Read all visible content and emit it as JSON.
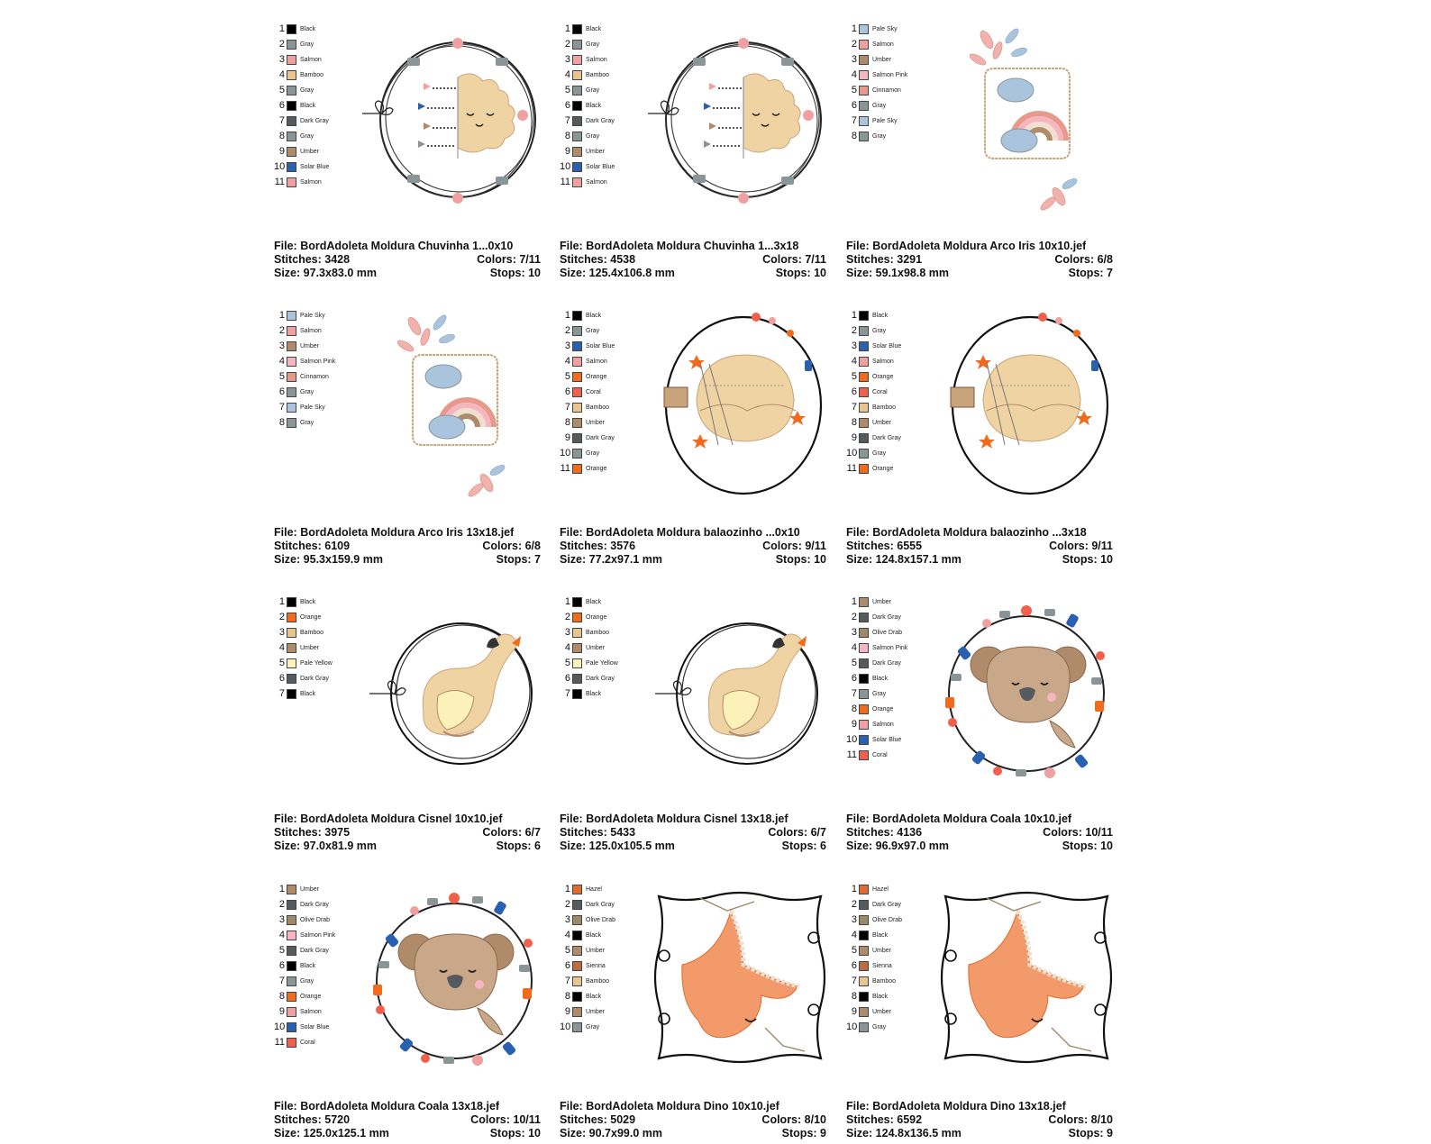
{
  "swatch_colors": {
    "Black": "#000000",
    "Gray": "#8a9598",
    "Salmon": "#f0a0a0",
    "Bamboo": "#e8c48e",
    "Dark Gray": "#555a5f",
    "Umber": "#b08b6a",
    "Solar Blue": "#2a60b0",
    "Pale Sky": "#a9c4dc",
    "Salmon Pink": "#f6b6c0",
    "Cinnamon": "#e79a8c",
    "Orange": "#f26a1b",
    "Coral": "#f0604c",
    "Pale Yellow": "#fcf1b8",
    "Olive Drab": "#9c8a66",
    "Hazel": "#e06a30",
    "Sienna": "#c06a40"
  },
  "designs": [
    {
      "file_label": "File:",
      "file": "BordAdoleta Moldura  Chuvinha 1...0x10",
      "stitches_label": "Stitches:",
      "stitches": "3428",
      "colors_label": "Colors:",
      "colors": "7/11",
      "size_label": "Size:",
      "size": "97.3x83.0 mm",
      "stops_label": "Stops:",
      "stops": "10",
      "art": "chuvinha",
      "legend": [
        {
          "num": "1",
          "name": "Black"
        },
        {
          "num": "2",
          "name": "Gray"
        },
        {
          "num": "3",
          "name": "Salmon"
        },
        {
          "num": "4",
          "name": "Bamboo"
        },
        {
          "num": "5",
          "name": "Gray"
        },
        {
          "num": "6",
          "name": "Black"
        },
        {
          "num": "7",
          "name": "Dark Gray"
        },
        {
          "num": "8",
          "name": "Gray"
        },
        {
          "num": "9",
          "name": "Umber"
        },
        {
          "num": "10",
          "name": "Solar Blue"
        },
        {
          "num": "11",
          "name": "Salmon"
        }
      ]
    },
    {
      "file_label": "File:",
      "file": "BordAdoleta Moldura  Chuvinha 1...3x18",
      "stitches_label": "Stitches:",
      "stitches": "4538",
      "colors_label": "Colors:",
      "colors": "7/11",
      "size_label": "Size:",
      "size": "125.4x106.8 mm",
      "stops_label": "Stops:",
      "stops": "10",
      "art": "chuvinha",
      "legend": [
        {
          "num": "1",
          "name": "Black"
        },
        {
          "num": "2",
          "name": "Gray"
        },
        {
          "num": "3",
          "name": "Salmon"
        },
        {
          "num": "4",
          "name": "Bamboo"
        },
        {
          "num": "5",
          "name": "Gray"
        },
        {
          "num": "6",
          "name": "Black"
        },
        {
          "num": "7",
          "name": "Dark Gray"
        },
        {
          "num": "8",
          "name": "Gray"
        },
        {
          "num": "9",
          "name": "Umber"
        },
        {
          "num": "10",
          "name": "Solar Blue"
        },
        {
          "num": "11",
          "name": "Salmon"
        }
      ]
    },
    {
      "file_label": "File:",
      "file": "BordAdoleta Moldura Arco Iris 10x10.jef",
      "stitches_label": "Stitches:",
      "stitches": "3291",
      "colors_label": "Colors:",
      "colors": "6/8",
      "size_label": "Size:",
      "size": "59.1x98.8 mm",
      "stops_label": "Stops:",
      "stops": "7",
      "art": "arco",
      "legend": [
        {
          "num": "1",
          "name": "Pale Sky"
        },
        {
          "num": "2",
          "name": "Salmon"
        },
        {
          "num": "3",
          "name": "Umber"
        },
        {
          "num": "4",
          "name": "Salmon Pink"
        },
        {
          "num": "5",
          "name": "Cinnamon"
        },
        {
          "num": "6",
          "name": "Gray"
        },
        {
          "num": "7",
          "name": "Pale Sky"
        },
        {
          "num": "8",
          "name": "Gray"
        }
      ]
    },
    {
      "file_label": "File:",
      "file": "BordAdoleta Moldura Arco Iris 13x18.jef",
      "stitches_label": "Stitches:",
      "stitches": "6109",
      "colors_label": "Colors:",
      "colors": "6/8",
      "size_label": "Size:",
      "size": "95.3x159.9 mm",
      "stops_label": "Stops:",
      "stops": "7",
      "art": "arco",
      "legend": [
        {
          "num": "1",
          "name": "Pale Sky"
        },
        {
          "num": "2",
          "name": "Salmon"
        },
        {
          "num": "3",
          "name": "Umber"
        },
        {
          "num": "4",
          "name": "Salmon Pink"
        },
        {
          "num": "5",
          "name": "Cinnamon"
        },
        {
          "num": "6",
          "name": "Gray"
        },
        {
          "num": "7",
          "name": "Pale Sky"
        },
        {
          "num": "8",
          "name": "Gray"
        }
      ]
    },
    {
      "file_label": "File:",
      "file": "BordAdoleta Moldura balaozinho ...0x10",
      "stitches_label": "Stitches:",
      "stitches": "3576",
      "colors_label": "Colors:",
      "colors": "9/11",
      "size_label": "Size:",
      "size": "77.2x97.1 mm",
      "stops_label": "Stops:",
      "stops": "10",
      "art": "balao",
      "legend": [
        {
          "num": "1",
          "name": "Black"
        },
        {
          "num": "2",
          "name": "Gray"
        },
        {
          "num": "3",
          "name": "Solar Blue"
        },
        {
          "num": "4",
          "name": "Salmon"
        },
        {
          "num": "5",
          "name": "Orange"
        },
        {
          "num": "6",
          "name": "Coral"
        },
        {
          "num": "7",
          "name": "Bamboo"
        },
        {
          "num": "8",
          "name": "Umber"
        },
        {
          "num": "9",
          "name": "Dark Gray"
        },
        {
          "num": "10",
          "name": "Gray"
        },
        {
          "num": "11",
          "name": "Orange"
        }
      ]
    },
    {
      "file_label": "File:",
      "file": "BordAdoleta Moldura balaozinho ...3x18",
      "stitches_label": "Stitches:",
      "stitches": "6555",
      "colors_label": "Colors:",
      "colors": "9/11",
      "size_label": "Size:",
      "size": "124.8x157.1 mm",
      "stops_label": "Stops:",
      "stops": "10",
      "art": "balao",
      "legend": [
        {
          "num": "1",
          "name": "Black"
        },
        {
          "num": "2",
          "name": "Gray"
        },
        {
          "num": "3",
          "name": "Solar Blue"
        },
        {
          "num": "4",
          "name": "Salmon"
        },
        {
          "num": "5",
          "name": "Orange"
        },
        {
          "num": "6",
          "name": "Coral"
        },
        {
          "num": "7",
          "name": "Bamboo"
        },
        {
          "num": "8",
          "name": "Umber"
        },
        {
          "num": "9",
          "name": "Dark Gray"
        },
        {
          "num": "10",
          "name": "Gray"
        },
        {
          "num": "11",
          "name": "Orange"
        }
      ]
    },
    {
      "file_label": "File:",
      "file": "BordAdoleta Moldura Cisnel 10x10.jef",
      "stitches_label": "Stitches:",
      "stitches": "3975",
      "colors_label": "Colors:",
      "colors": "6/7",
      "size_label": "Size:",
      "size": "97.0x81.9 mm",
      "stops_label": "Stops:",
      "stops": "6",
      "art": "cisne",
      "legend": [
        {
          "num": "1",
          "name": "Black"
        },
        {
          "num": "2",
          "name": "Orange"
        },
        {
          "num": "3",
          "name": "Bamboo"
        },
        {
          "num": "4",
          "name": "Umber"
        },
        {
          "num": "5",
          "name": "Pale Yellow"
        },
        {
          "num": "6",
          "name": "Dark Gray"
        },
        {
          "num": "7",
          "name": "Black"
        }
      ]
    },
    {
      "file_label": "File:",
      "file": "BordAdoleta Moldura Cisnel 13x18.jef",
      "stitches_label": "Stitches:",
      "stitches": "5433",
      "colors_label": "Colors:",
      "colors": "6/7",
      "size_label": "Size:",
      "size": "125.0x105.5 mm",
      "stops_label": "Stops:",
      "stops": "6",
      "art": "cisne",
      "legend": [
        {
          "num": "1",
          "name": "Black"
        },
        {
          "num": "2",
          "name": "Orange"
        },
        {
          "num": "3",
          "name": "Bamboo"
        },
        {
          "num": "4",
          "name": "Umber"
        },
        {
          "num": "5",
          "name": "Pale Yellow"
        },
        {
          "num": "6",
          "name": "Dark Gray"
        },
        {
          "num": "7",
          "name": "Black"
        }
      ]
    },
    {
      "file_label": "File:",
      "file": "BordAdoleta Moldura Coala 10x10.jef",
      "stitches_label": "Stitches:",
      "stitches": "4136",
      "colors_label": "Colors:",
      "colors": "10/11",
      "size_label": "Size:",
      "size": "96.9x97.0 mm",
      "stops_label": "Stops:",
      "stops": "10",
      "art": "coala",
      "legend": [
        {
          "num": "1",
          "name": "Umber"
        },
        {
          "num": "2",
          "name": "Dark Gray"
        },
        {
          "num": "3",
          "name": "Olive Drab"
        },
        {
          "num": "4",
          "name": "Salmon Pink"
        },
        {
          "num": "5",
          "name": "Dark Gray"
        },
        {
          "num": "6",
          "name": "Black"
        },
        {
          "num": "7",
          "name": "Gray"
        },
        {
          "num": "8",
          "name": "Orange"
        },
        {
          "num": "9",
          "name": "Salmon"
        },
        {
          "num": "10",
          "name": "Solar Blue"
        },
        {
          "num": "11",
          "name": "Coral"
        }
      ]
    },
    {
      "file_label": "File:",
      "file": "BordAdoleta Moldura Coala 13x18.jef",
      "stitches_label": "Stitches:",
      "stitches": "5720",
      "colors_label": "Colors:",
      "colors": "10/11",
      "size_label": "Size:",
      "size": "125.0x125.1 mm",
      "stops_label": "Stops:",
      "stops": "10",
      "art": "coala",
      "legend": [
        {
          "num": "1",
          "name": "Umber"
        },
        {
          "num": "2",
          "name": "Dark Gray"
        },
        {
          "num": "3",
          "name": "Olive Drab"
        },
        {
          "num": "4",
          "name": "Salmon Pink"
        },
        {
          "num": "5",
          "name": "Dark Gray"
        },
        {
          "num": "6",
          "name": "Black"
        },
        {
          "num": "7",
          "name": "Gray"
        },
        {
          "num": "8",
          "name": "Orange"
        },
        {
          "num": "9",
          "name": "Salmon"
        },
        {
          "num": "10",
          "name": "Solar Blue"
        },
        {
          "num": "11",
          "name": "Coral"
        }
      ]
    },
    {
      "file_label": "File:",
      "file": "BordAdoleta Moldura Dino 10x10.jef",
      "stitches_label": "Stitches:",
      "stitches": "5029",
      "colors_label": "Colors:",
      "colors": "8/10",
      "size_label": "Size:",
      "size": "90.7x99.0 mm",
      "stops_label": "Stops:",
      "stops": "9",
      "art": "dino",
      "legend": [
        {
          "num": "1",
          "name": "Hazel"
        },
        {
          "num": "2",
          "name": "Dark Gray"
        },
        {
          "num": "3",
          "name": "Olive Drab"
        },
        {
          "num": "4",
          "name": "Black"
        },
        {
          "num": "5",
          "name": "Umber"
        },
        {
          "num": "6",
          "name": "Sienna"
        },
        {
          "num": "7",
          "name": "Bamboo"
        },
        {
          "num": "8",
          "name": "Black"
        },
        {
          "num": "9",
          "name": "Umber"
        },
        {
          "num": "10",
          "name": "Gray"
        }
      ]
    },
    {
      "file_label": "File:",
      "file": "BordAdoleta Moldura Dino 13x18.jef",
      "stitches_label": "Stitches:",
      "stitches": "6592",
      "colors_label": "Colors:",
      "colors": "8/10",
      "size_label": "Size:",
      "size": "124.8x136.5 mm",
      "stops_label": "Stops:",
      "stops": "9",
      "art": "dino",
      "legend": [
        {
          "num": "1",
          "name": "Hazel"
        },
        {
          "num": "2",
          "name": "Dark Gray"
        },
        {
          "num": "3",
          "name": "Olive Drab"
        },
        {
          "num": "4",
          "name": "Black"
        },
        {
          "num": "5",
          "name": "Umber"
        },
        {
          "num": "6",
          "name": "Sienna"
        },
        {
          "num": "7",
          "name": "Bamboo"
        },
        {
          "num": "8",
          "name": "Black"
        },
        {
          "num": "9",
          "name": "Umber"
        },
        {
          "num": "10",
          "name": "Gray"
        }
      ]
    }
  ]
}
